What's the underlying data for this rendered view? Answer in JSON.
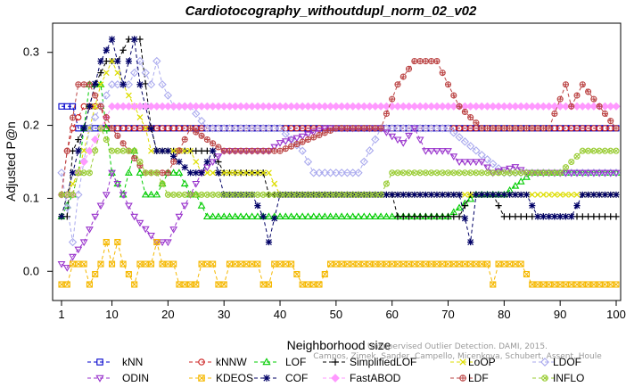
{
  "chart_data": {
    "type": "line",
    "title": "Cardiotocography_withoutdupl_norm_02_v02",
    "xlabel": "Neighborhood size",
    "ylabel": "Adjusted P@n",
    "xlim": [
      1,
      100
    ],
    "ylim": [
      -0.04,
      0.34
    ],
    "xticks": [
      1,
      10,
      20,
      30,
      40,
      50,
      60,
      70,
      80,
      90,
      100
    ],
    "yticks": [
      0.0,
      0.1,
      0.2,
      0.3
    ],
    "ytick_labels": [
      "0.0",
      "0.1",
      "0.2",
      "0.3"
    ],
    "grid": false,
    "legend_position": "bottom",
    "watermark": [
      "Campos, Zimek, Sander, Campello, Micenkova, Schubert, Assent, Houle",
      "Unsupervised Outlier Detection. DAMI, 2015."
    ],
    "series": [
      {
        "name": "kNN",
        "color": "#0000cc",
        "marker": "square",
        "points": [
          [
            1,
            0.226
          ],
          [
            3,
            0.226
          ],
          [
            4,
            0.196
          ],
          [
            100,
            0.196
          ]
        ]
      },
      {
        "name": "kNNW",
        "color": "#cc2222",
        "marker": "circle",
        "points": [
          [
            1,
            0.105
          ],
          [
            2,
            0.165
          ],
          [
            3,
            0.196
          ],
          [
            5,
            0.226
          ],
          [
            8,
            0.226
          ],
          [
            9,
            0.196
          ],
          [
            100,
            0.196
          ]
        ]
      },
      {
        "name": "LOF",
        "color": "#00cc00",
        "marker": "triangle",
        "points": [
          [
            1,
            0.075
          ],
          [
            3,
            0.105
          ],
          [
            4,
            0.135
          ],
          [
            5,
            0.196
          ],
          [
            6,
            0.256
          ],
          [
            8,
            0.256
          ],
          [
            10,
            0.135
          ],
          [
            12,
            0.105
          ],
          [
            14,
            0.165
          ],
          [
            16,
            0.105
          ],
          [
            18,
            0.105
          ],
          [
            20,
            0.135
          ],
          [
            22,
            0.135
          ],
          [
            24,
            0.105
          ],
          [
            25,
            0.105
          ],
          [
            27,
            0.075
          ],
          [
            45,
            0.075
          ],
          [
            52,
            0.075
          ],
          [
            60,
            0.075
          ],
          [
            65,
            0.075
          ],
          [
            70,
            0.075
          ],
          [
            75,
            0.105
          ],
          [
            80,
            0.105
          ],
          [
            85,
            0.135
          ],
          [
            90,
            0.135
          ],
          [
            92,
            0.135
          ],
          [
            100,
            0.135
          ]
        ]
      },
      {
        "name": "SimplifiedLOF",
        "color": "#000000",
        "marker": "plus",
        "points": [
          [
            1,
            0.075
          ],
          [
            2,
            0.075
          ],
          [
            3,
            0.165
          ],
          [
            5,
            0.196
          ],
          [
            7,
            0.256
          ],
          [
            9,
            0.288
          ],
          [
            11,
            0.288
          ],
          [
            13,
            0.318
          ],
          [
            15,
            0.318
          ],
          [
            17,
            0.196
          ],
          [
            18,
            0.165
          ],
          [
            28,
            0.165
          ],
          [
            30,
            0.135
          ],
          [
            37,
            0.135
          ],
          [
            38,
            0.105
          ],
          [
            60,
            0.105
          ],
          [
            61,
            0.075
          ],
          [
            72,
            0.075
          ],
          [
            74,
            0.105
          ],
          [
            78,
            0.105
          ],
          [
            80,
            0.075
          ],
          [
            100,
            0.075
          ]
        ]
      },
      {
        "name": "LoOP",
        "color": "#dddd00",
        "marker": "cross",
        "points": [
          [
            1,
            0.075
          ],
          [
            2,
            0.105
          ],
          [
            4,
            0.135
          ],
          [
            6,
            0.196
          ],
          [
            7,
            0.226
          ],
          [
            8,
            0.256
          ],
          [
            10,
            0.288
          ],
          [
            12,
            0.256
          ],
          [
            14,
            0.226
          ],
          [
            16,
            0.196
          ],
          [
            17,
            0.165
          ],
          [
            24,
            0.165
          ],
          [
            26,
            0.135
          ],
          [
            38,
            0.135
          ],
          [
            40,
            0.105
          ],
          [
            60,
            0.105
          ],
          [
            62,
            0.105
          ],
          [
            70,
            0.105
          ],
          [
            72,
            0.105
          ],
          [
            80,
            0.105
          ],
          [
            82,
            0.105
          ],
          [
            100,
            0.105
          ]
        ]
      },
      {
        "name": "LDOF",
        "color": "#aaaaee",
        "marker": "diamond",
        "points": [
          [
            1,
            0.135
          ],
          [
            3,
            0.04
          ],
          [
            4,
            0.105
          ],
          [
            6,
            0.196
          ],
          [
            8,
            0.226
          ],
          [
            10,
            0.256
          ],
          [
            13,
            0.256
          ],
          [
            15,
            0.288
          ],
          [
            17,
            0.256
          ],
          [
            18,
            0.288
          ],
          [
            19,
            0.256
          ],
          [
            21,
            0.226
          ],
          [
            24,
            0.226
          ],
          [
            27,
            0.196
          ],
          [
            30,
            0.196
          ],
          [
            40,
            0.196
          ],
          [
            44,
            0.165
          ],
          [
            46,
            0.135
          ],
          [
            50,
            0.135
          ],
          [
            54,
            0.135
          ],
          [
            58,
            0.196
          ],
          [
            62,
            0.196
          ],
          [
            70,
            0.196
          ],
          [
            80,
            0.135
          ],
          [
            86,
            0.135
          ],
          [
            90,
            0.135
          ],
          [
            100,
            0.135
          ]
        ]
      },
      {
        "name": "ODIN",
        "color": "#9933cc",
        "marker": "triangle-down",
        "points": [
          [
            1,
            0.01
          ],
          [
            2,
            0.005
          ],
          [
            3,
            0.02
          ],
          [
            5,
            0.04
          ],
          [
            7,
            0.075
          ],
          [
            9,
            0.105
          ],
          [
            10,
            0.135
          ],
          [
            12,
            0.105
          ],
          [
            14,
            0.075
          ],
          [
            16,
            0.058
          ],
          [
            18,
            0.04
          ],
          [
            20,
            0.04
          ],
          [
            22,
            0.075
          ],
          [
            24,
            0.105
          ],
          [
            26,
            0.135
          ],
          [
            30,
            0.165
          ],
          [
            34,
            0.165
          ],
          [
            38,
            0.165
          ],
          [
            40,
            0.176
          ],
          [
            44,
            0.185
          ],
          [
            48,
            0.196
          ],
          [
            52,
            0.196
          ],
          [
            56,
            0.196
          ],
          [
            58,
            0.196
          ],
          [
            60,
            0.185
          ],
          [
            62,
            0.176
          ],
          [
            64,
            0.196
          ],
          [
            66,
            0.165
          ],
          [
            70,
            0.165
          ],
          [
            72,
            0.15
          ],
          [
            76,
            0.15
          ],
          [
            78,
            0.135
          ],
          [
            82,
            0.143
          ],
          [
            84,
            0.135
          ],
          [
            90,
            0.135
          ],
          [
            100,
            0.135
          ]
        ]
      },
      {
        "name": "KDEOS",
        "color": "#f5b800",
        "marker": "square-cross",
        "points": [
          [
            1,
            -0.018
          ],
          [
            2,
            -0.018
          ],
          [
            3,
            0.01
          ],
          [
            5,
            0.01
          ],
          [
            6,
            -0.018
          ],
          [
            8,
            0.01
          ],
          [
            9,
            0.04
          ],
          [
            10,
            0.01
          ],
          [
            11,
            0.04
          ],
          [
            12,
            0.01
          ],
          [
            14,
            -0.018
          ],
          [
            15,
            0.01
          ],
          [
            17,
            0.01
          ],
          [
            18,
            0.04
          ],
          [
            19,
            0.01
          ],
          [
            21,
            0.01
          ],
          [
            22,
            -0.018
          ],
          [
            25,
            -0.018
          ],
          [
            26,
            0.01
          ],
          [
            28,
            0.01
          ],
          [
            29,
            -0.018
          ],
          [
            30,
            -0.018
          ],
          [
            31,
            0.01
          ],
          [
            36,
            0.01
          ],
          [
            37,
            -0.018
          ],
          [
            38,
            -0.018
          ],
          [
            39,
            0.01
          ],
          [
            42,
            0.01
          ],
          [
            44,
            -0.018
          ],
          [
            47,
            -0.018
          ],
          [
            49,
            0.01
          ],
          [
            77,
            0.01
          ],
          [
            78,
            -0.018
          ],
          [
            79,
            0.01
          ],
          [
            83,
            0.01
          ],
          [
            85,
            -0.018
          ],
          [
            100,
            -0.018
          ]
        ]
      },
      {
        "name": "COF",
        "color": "#000066",
        "marker": "asterisk",
        "points": [
          [
            1,
            0.075
          ],
          [
            2,
            0.105
          ],
          [
            4,
            0.165
          ],
          [
            5,
            0.196
          ],
          [
            6,
            0.226
          ],
          [
            8,
            0.288
          ],
          [
            10,
            0.318
          ],
          [
            11,
            0.288
          ],
          [
            12,
            0.256
          ],
          [
            13,
            0.288
          ],
          [
            14,
            0.318
          ],
          [
            15,
            0.256
          ],
          [
            16,
            0.226
          ],
          [
            18,
            0.165
          ],
          [
            20,
            0.165
          ],
          [
            24,
            0.135
          ],
          [
            26,
            0.135
          ],
          [
            28,
            0.165
          ],
          [
            30,
            0.105
          ],
          [
            35,
            0.105
          ],
          [
            37,
            0.075
          ],
          [
            38,
            0.04
          ],
          [
            40,
            0.105
          ],
          [
            44,
            0.105
          ],
          [
            48,
            0.105
          ],
          [
            52,
            0.105
          ],
          [
            56,
            0.105
          ],
          [
            60,
            0.105
          ],
          [
            64,
            0.105
          ],
          [
            70,
            0.105
          ],
          [
            72,
            0.105
          ],
          [
            74,
            0.04
          ],
          [
            75,
            0.105
          ],
          [
            80,
            0.105
          ],
          [
            84,
            0.105
          ],
          [
            86,
            0.075
          ],
          [
            90,
            0.075
          ],
          [
            92,
            0.075
          ],
          [
            94,
            0.105
          ],
          [
            100,
            0.105
          ]
        ]
      },
      {
        "name": "FastABOD",
        "color": "#ff99ff",
        "marker": "diamond-filled",
        "points": [
          [
            1,
            0.105
          ],
          [
            3,
            0.105
          ],
          [
            4,
            0.135
          ],
          [
            6,
            0.165
          ],
          [
            8,
            0.196
          ],
          [
            10,
            0.226
          ],
          [
            14,
            0.226
          ],
          [
            100,
            0.226
          ]
        ]
      },
      {
        "name": "LDF",
        "color": "#bb4444",
        "marker": "circle-plus",
        "points": [
          [
            1,
            0.105
          ],
          [
            2,
            0.165
          ],
          [
            4,
            0.256
          ],
          [
            6,
            0.256
          ],
          [
            8,
            0.226
          ],
          [
            10,
            0.196
          ],
          [
            13,
            0.165
          ],
          [
            16,
            0.135
          ],
          [
            20,
            0.135
          ],
          [
            24,
            0.196
          ],
          [
            30,
            0.165
          ],
          [
            40,
            0.165
          ],
          [
            50,
            0.196
          ],
          [
            58,
            0.196
          ],
          [
            61,
            0.256
          ],
          [
            64,
            0.288
          ],
          [
            68,
            0.288
          ],
          [
            70,
            0.256
          ],
          [
            72,
            0.226
          ],
          [
            76,
            0.196
          ],
          [
            80,
            0.196
          ],
          [
            84,
            0.196
          ],
          [
            88,
            0.196
          ],
          [
            91,
            0.256
          ],
          [
            92,
            0.226
          ],
          [
            94,
            0.256
          ],
          [
            100,
            0.196
          ]
        ]
      },
      {
        "name": "INFLO",
        "color": "#99cc33",
        "marker": "circle-cross",
        "points": [
          [
            1,
            0.105
          ],
          [
            3,
            0.105
          ],
          [
            4,
            0.135
          ],
          [
            6,
            0.135
          ],
          [
            8,
            0.196
          ],
          [
            10,
            0.165
          ],
          [
            14,
            0.165
          ],
          [
            16,
            0.135
          ],
          [
            18,
            0.135
          ],
          [
            20,
            0.105
          ],
          [
            24,
            0.105
          ],
          [
            26,
            0.105
          ],
          [
            30,
            0.105
          ],
          [
            38,
            0.105
          ],
          [
            44,
            0.105
          ],
          [
            50,
            0.105
          ],
          [
            58,
            0.105
          ],
          [
            60,
            0.135
          ],
          [
            70,
            0.135
          ],
          [
            80,
            0.135
          ],
          [
            86,
            0.135
          ],
          [
            90,
            0.135
          ],
          [
            94,
            0.165
          ],
          [
            100,
            0.165
          ]
        ]
      }
    ]
  }
}
